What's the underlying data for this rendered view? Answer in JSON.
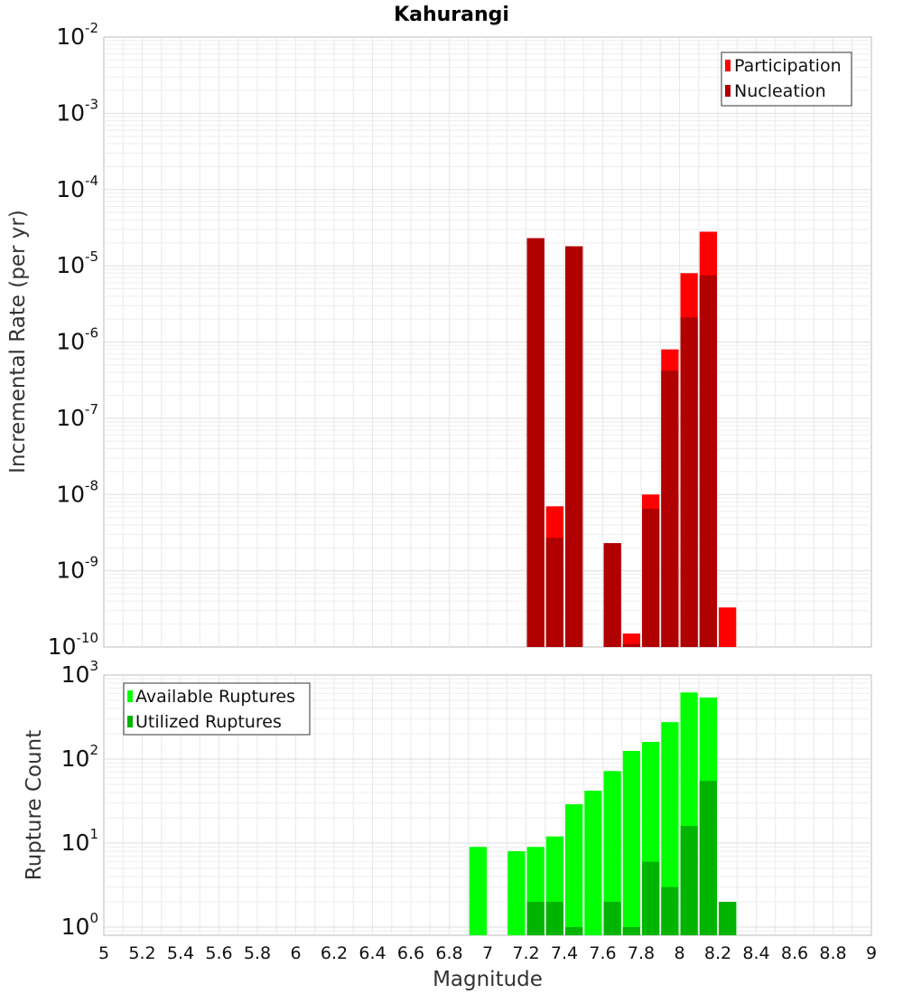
{
  "chart_data": [
    {
      "type": "bar",
      "title": "Kahurangi",
      "ylabel": "Incremental Rate (per yr)",
      "yscale": "log",
      "ylim": [
        1e-10,
        0.01
      ],
      "xlim": [
        5,
        9
      ],
      "bar_width": 0.1,
      "grid": true,
      "legend_position": "top-right",
      "legend": [
        "Participation",
        "Nucleation"
      ],
      "series": [
        {
          "name": "Participation",
          "color": "#ff0000",
          "x": [
            7.25,
            7.35,
            7.45,
            7.65,
            7.75,
            7.85,
            7.95,
            8.05,
            8.15,
            8.25
          ],
          "values": [
            2.3e-05,
            7e-09,
            1.8e-05,
            2.3e-09,
            1.5e-10,
            1e-08,
            8e-07,
            8e-06,
            2.8e-05,
            3.3e-10
          ]
        },
        {
          "name": "Nucleation",
          "color": "#b00000",
          "x": [
            7.25,
            7.35,
            7.45,
            7.65,
            7.75,
            7.85,
            7.95,
            8.05,
            8.15
          ],
          "values": [
            2.3e-05,
            2.7e-09,
            1.8e-05,
            2.3e-09,
            1.1e-10,
            6.5e-09,
            4.2e-07,
            2.1e-06,
            7.5e-06
          ]
        }
      ]
    },
    {
      "type": "bar",
      "ylabel": "Rupture Count",
      "xlabel": "Magnitude",
      "yscale": "log",
      "ylim": [
        0.8,
        1000
      ],
      "xlim": [
        5,
        9
      ],
      "bar_width": 0.1,
      "grid": true,
      "legend_position": "top-left",
      "legend": [
        "Available Ruptures",
        "Utilized Ruptures"
      ],
      "xticks": [
        "5",
        "5.2",
        "5.4",
        "5.6",
        "5.8",
        "6",
        "6.2",
        "6.4",
        "6.6",
        "6.8",
        "7",
        "7.2",
        "7.4",
        "7.6",
        "7.8",
        "8",
        "8.2",
        "8.4",
        "8.6",
        "8.8",
        "9"
      ],
      "series": [
        {
          "name": "Available Ruptures",
          "color": "#00ff00",
          "x": [
            6.95,
            7.15,
            7.25,
            7.35,
            7.45,
            7.55,
            7.65,
            7.75,
            7.85,
            7.95,
            8.05,
            8.15,
            8.25
          ],
          "values": [
            9,
            8,
            9,
            12,
            29,
            42,
            72,
            125,
            160,
            275,
            620,
            540,
            2
          ]
        },
        {
          "name": "Utilized Ruptures",
          "color": "#00b400",
          "x": [
            7.25,
            7.35,
            7.45,
            7.65,
            7.75,
            7.85,
            7.95,
            8.05,
            8.15,
            8.25
          ],
          "values": [
            2,
            2,
            1,
            2,
            1,
            6,
            3,
            16,
            55,
            2
          ]
        }
      ]
    }
  ]
}
